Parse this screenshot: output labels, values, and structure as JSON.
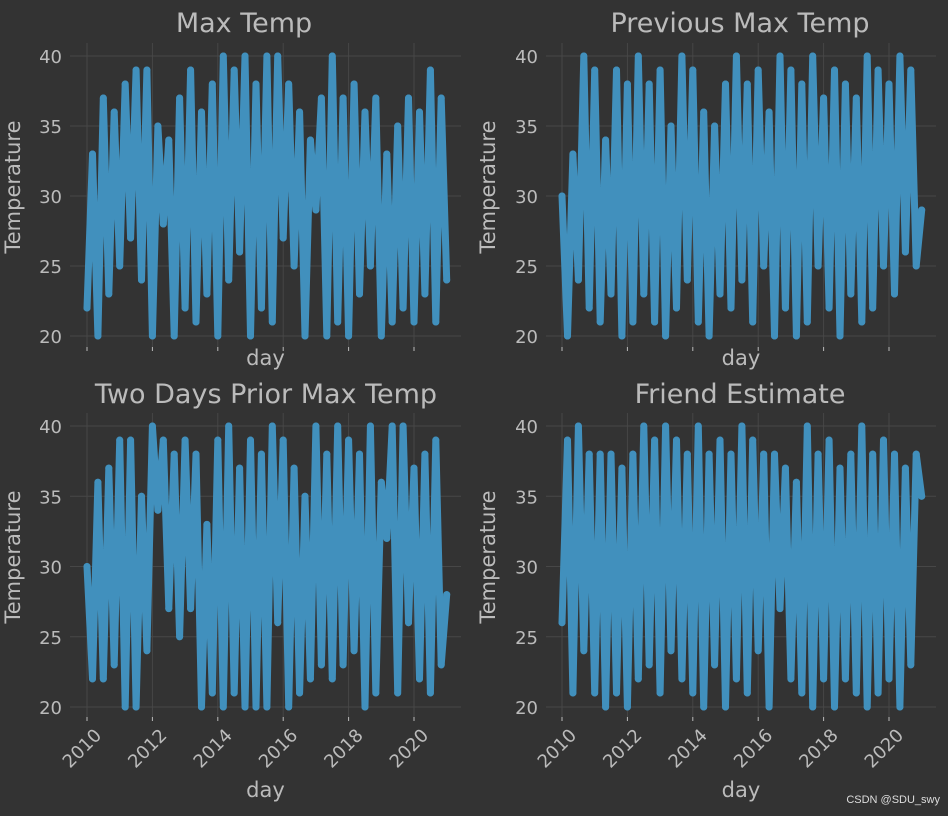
{
  "chart_data": [
    {
      "type": "line",
      "title": "Max Temp",
      "xlabel": "day",
      "ylabel": "Temperature",
      "ylim": [
        20,
        40
      ],
      "yticks": [
        "20",
        "25",
        "30",
        "35",
        "40"
      ],
      "xticks": [
        "2010",
        "2012",
        "2014",
        "2016",
        "2018",
        "2020"
      ],
      "show_xtick_labels": false,
      "grid": true,
      "color": "#4190bd",
      "series_key": 0
    },
    {
      "type": "line",
      "title": "Previous Max Temp",
      "xlabel": "day",
      "ylabel": "Temperature",
      "ylim": [
        20,
        40
      ],
      "yticks": [
        "20",
        "25",
        "30",
        "35",
        "40"
      ],
      "xticks": [
        "2010",
        "2012",
        "2014",
        "2016",
        "2018",
        "2020"
      ],
      "show_xtick_labels": false,
      "grid": true,
      "color": "#4190bd",
      "series_key": 1
    },
    {
      "type": "line",
      "title": "Two Days Prior Max Temp",
      "xlabel": "day",
      "ylabel": "Temperature",
      "ylim": [
        20,
        40
      ],
      "yticks": [
        "20",
        "25",
        "30",
        "35",
        "40"
      ],
      "xticks": [
        "2010",
        "2012",
        "2014",
        "2016",
        "2018",
        "2020"
      ],
      "show_xtick_labels": true,
      "grid": true,
      "color": "#4190bd",
      "series_key": 2
    },
    {
      "type": "line",
      "title": "Friend Estimate",
      "xlabel": "day",
      "ylabel": "Temperature",
      "ylim": [
        20,
        40
      ],
      "yticks": [
        "20",
        "25",
        "30",
        "35",
        "40"
      ],
      "xticks": [
        "2010",
        "2012",
        "2014",
        "2016",
        "2018",
        "2020"
      ],
      "show_xtick_labels": true,
      "grid": true,
      "color": "#4190bd",
      "series_key": 3
    }
  ],
  "x_start": "2010-01",
  "x_step_months": 2,
  "series": [
    [
      22,
      33,
      20,
      37,
      23,
      36,
      25,
      38,
      27,
      39,
      24,
      39,
      20,
      35,
      28,
      34,
      20,
      37,
      22,
      39,
      21,
      36,
      23,
      38,
      20,
      40,
      24,
      39,
      26,
      40,
      20,
      38,
      22,
      40,
      21,
      40,
      27,
      38,
      25,
      36,
      20,
      34,
      29,
      37,
      20,
      40,
      21,
      37,
      20,
      38,
      23,
      36,
      25,
      37,
      20,
      33,
      21,
      35,
      22,
      37,
      21,
      36,
      23,
      39,
      21,
      37,
      24
    ],
    [
      30,
      20,
      33,
      24,
      40,
      22,
      39,
      21,
      34,
      23,
      39,
      20,
      38,
      21,
      40,
      23,
      38,
      21,
      39,
      20,
      35,
      22,
      40,
      24,
      39,
      21,
      36,
      20,
      35,
      23,
      38,
      22,
      40,
      24,
      38,
      21,
      39,
      25,
      36,
      20,
      40,
      22,
      39,
      20,
      38,
      21,
      40,
      25,
      37,
      22,
      39,
      20,
      38,
      23,
      37,
      21,
      40,
      22,
      39,
      25,
      38,
      23,
      40,
      26,
      39,
      25,
      29
    ],
    [
      30,
      22,
      36,
      22,
      37,
      23,
      39,
      20,
      39,
      20,
      35,
      24,
      40,
      34,
      39,
      27,
      38,
      25,
      39,
      27,
      38,
      20,
      33,
      21,
      39,
      20,
      40,
      21,
      37,
      20,
      39,
      20,
      38,
      20,
      40,
      26,
      39,
      20,
      37,
      21,
      35,
      22,
      40,
      23,
      38,
      22,
      40,
      23,
      39,
      24,
      38,
      20,
      40,
      21,
      36,
      32,
      40,
      21,
      40,
      26,
      37,
      22,
      38,
      21,
      39,
      23,
      28
    ],
    [
      26,
      39,
      21,
      40,
      24,
      38,
      21,
      38,
      20,
      38,
      21,
      37,
      20,
      38,
      22,
      40,
      23,
      39,
      21,
      40,
      24,
      39,
      22,
      38,
      21,
      40,
      20,
      38,
      23,
      39,
      20,
      38,
      22,
      40,
      21,
      39,
      24,
      38,
      20,
      38,
      27,
      37,
      22,
      36,
      21,
      40,
      20,
      38,
      22,
      39,
      20,
      37,
      22,
      38,
      21,
      40,
      20,
      38,
      21,
      39,
      22,
      38,
      20,
      37,
      23,
      38,
      35
    ]
  ],
  "watermark": "CSDN @SDU_swy",
  "colors": {
    "background": "#333333",
    "grid": "#474747",
    "text": "#bbbbbb",
    "line": "#4190bd"
  }
}
